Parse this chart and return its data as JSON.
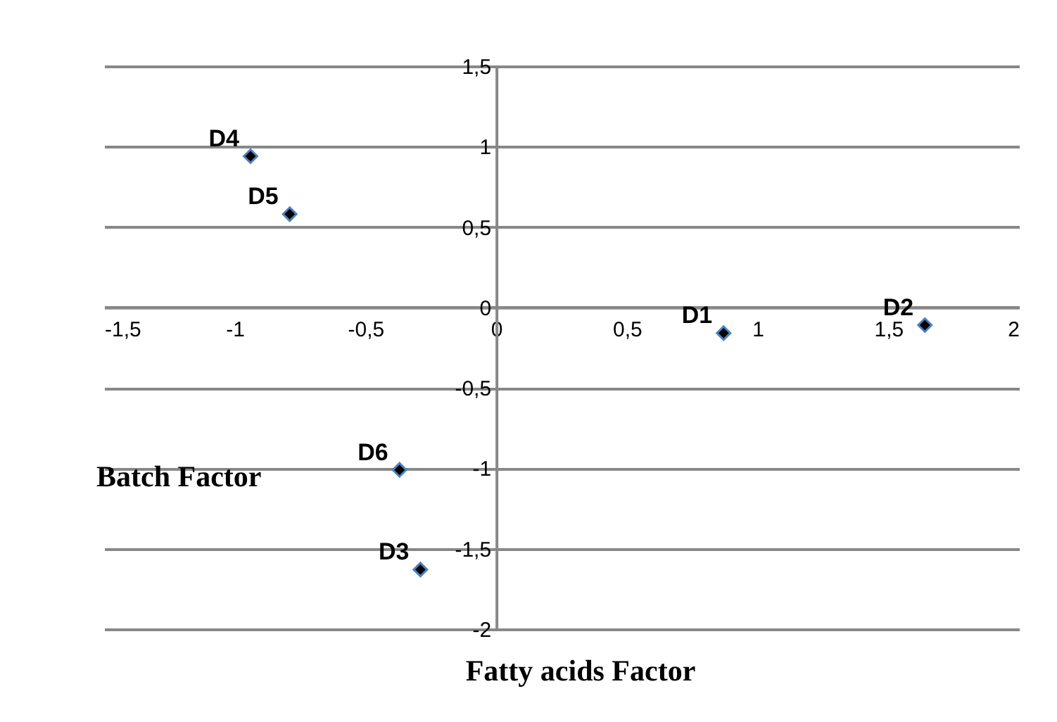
{
  "chart_data": {
    "type": "scatter",
    "xlabel": "Fatty acids Factor",
    "ylabel": "Batch Factor",
    "x": [
      0.87,
      1.64,
      -0.29,
      -0.94,
      -0.79,
      -0.37
    ],
    "series": [
      {
        "color": "#000000",
        "values": [
          -0.16,
          -0.11,
          -1.63,
          0.94,
          0.58,
          -1.01
        ]
      }
    ],
    "annotations": [
      {
        "text": "D1",
        "x": 0.87,
        "y": -0.16
      },
      {
        "text": "D2",
        "x": 1.64,
        "y": -0.11
      },
      {
        "text": "D3",
        "x": -0.29,
        "y": -1.63
      },
      {
        "text": "D4",
        "x": -0.94,
        "y": 0.94
      },
      {
        "text": "D5",
        "x": -0.79,
        "y": 0.58
      },
      {
        "text": "D6",
        "x": -0.37,
        "y": -1.01
      }
    ],
    "xlim": [
      -1.5,
      2
    ],
    "ylim": [
      -2,
      1.5
    ],
    "xticks": [
      {
        "value": -1.5,
        "label": "-1,5"
      },
      -1,
      {
        "value": -0.5,
        "label": "-0,5"
      },
      0,
      {
        "value": 0.5,
        "label": "0,5"
      },
      1,
      {
        "value": 1.5,
        "label": "1,5"
      },
      2
    ],
    "yticks": [
      -2,
      {
        "value": -1.5,
        "label": "-1,5"
      },
      -1,
      {
        "value": -0.5,
        "label": "-0,5"
      },
      0,
      {
        "value": 0.5,
        "label": "0,5"
      },
      1,
      {
        "value": 1.5,
        "label": "1,5"
      }
    ],
    "grid": "y",
    "marker": "diamond"
  }
}
